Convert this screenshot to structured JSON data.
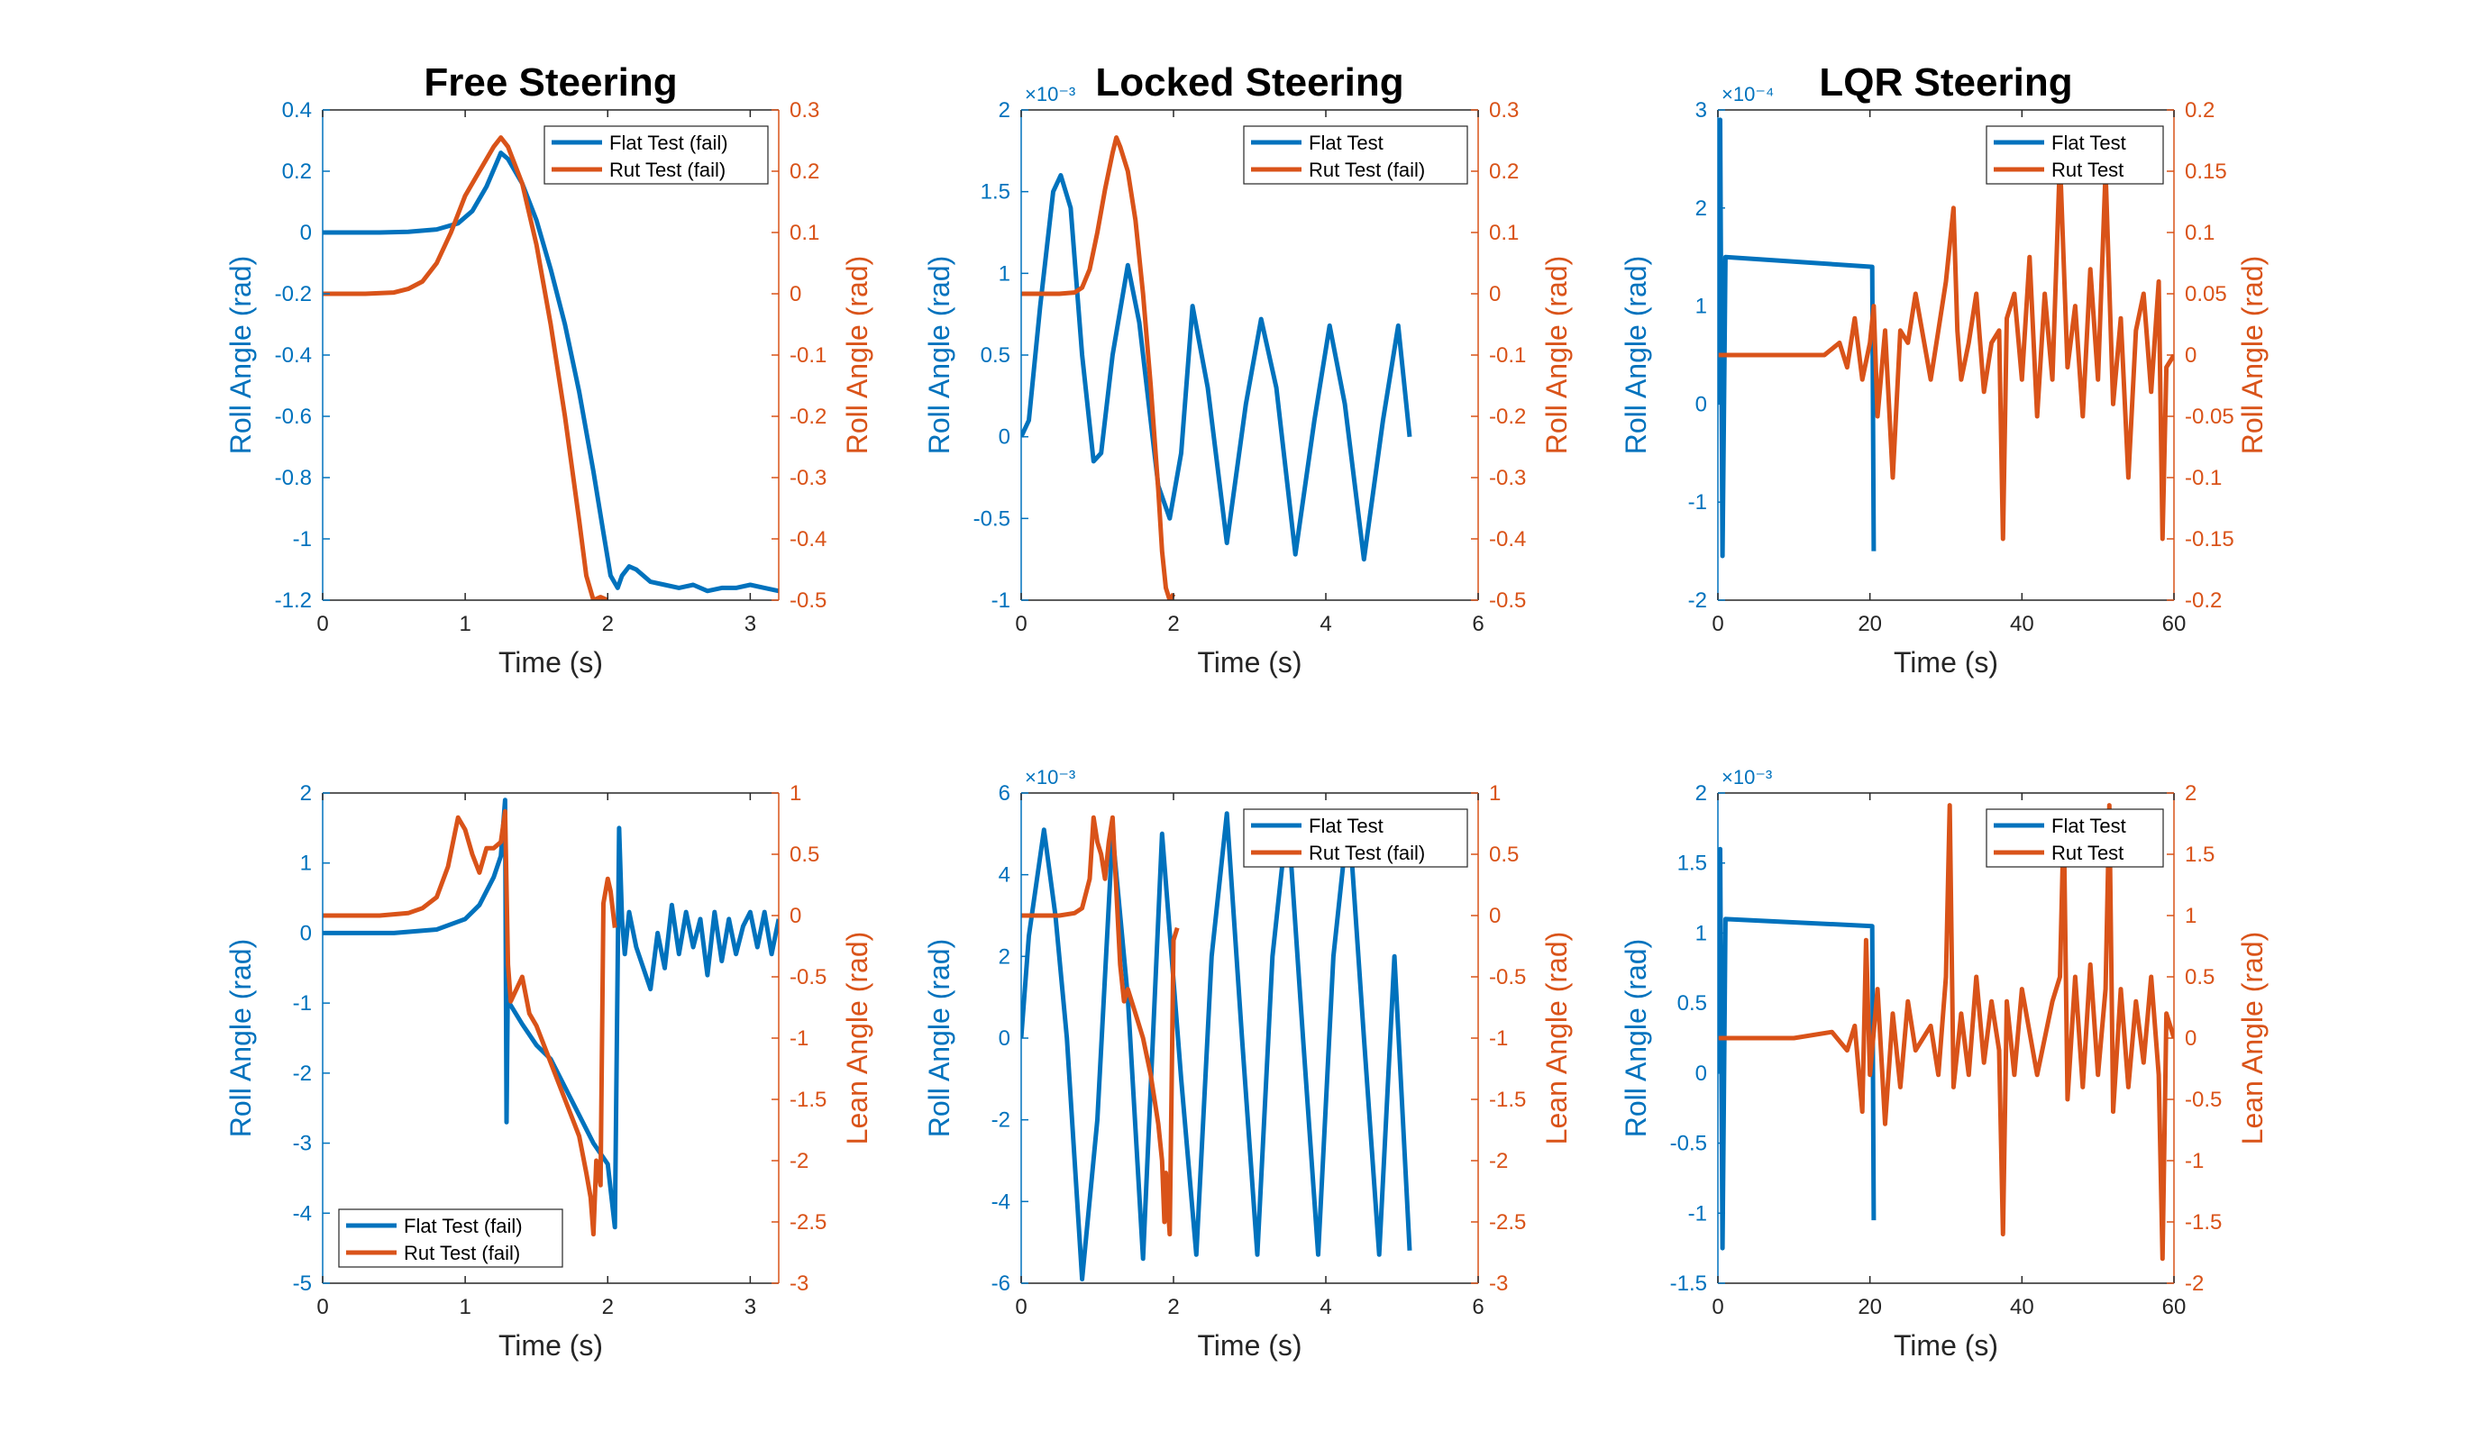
{
  "colors": {
    "flat": "#0072BD",
    "rut": "#D95319",
    "axis": "#262626"
  },
  "chart_data": [
    {
      "type": "line",
      "title": "Free Steering",
      "xlabel": "Time (s)",
      "ylabel_left": "Roll Angle (rad)",
      "ylabel_right": "Roll Angle (rad)",
      "xlim": [
        0,
        3.2
      ],
      "xticks": [
        0,
        1,
        2,
        3
      ],
      "ylim_left": [
        -1.2,
        0.4
      ],
      "yticks_left": [
        -1.2,
        -1,
        -0.8,
        -0.6,
        -0.4,
        -0.2,
        0,
        0.2,
        0.4
      ],
      "ylim_right": [
        -0.5,
        0.3
      ],
      "yticks_right": [
        -0.5,
        -0.4,
        -0.3,
        -0.2,
        -0.1,
        0,
        0.1,
        0.2,
        0.3
      ],
      "legend": {
        "position": "top-right",
        "entries": [
          "Flat Test (fail)",
          "Rut Test (fail)"
        ]
      },
      "series": [
        {
          "name": "Flat Test (fail)",
          "axis": "left",
          "color": "#0072BD",
          "x": [
            0,
            0.4,
            0.6,
            0.8,
            0.95,
            1.05,
            1.15,
            1.25,
            1.3,
            1.4,
            1.5,
            1.6,
            1.7,
            1.8,
            1.9,
            1.97,
            2.02,
            2.07,
            2.1,
            2.15,
            2.2,
            2.3,
            2.4,
            2.5,
            2.6,
            2.7,
            2.8,
            2.9,
            3.0,
            3.1,
            3.2
          ],
          "y": [
            0,
            0,
            0.002,
            0.01,
            0.03,
            0.07,
            0.15,
            0.26,
            0.24,
            0.16,
            0.04,
            -0.12,
            -0.3,
            -0.52,
            -0.78,
            -0.98,
            -1.12,
            -1.16,
            -1.12,
            -1.09,
            -1.1,
            -1.14,
            -1.15,
            -1.16,
            -1.15,
            -1.17,
            -1.16,
            -1.16,
            -1.15,
            -1.16,
            -1.17
          ]
        },
        {
          "name": "Rut Test (fail)",
          "axis": "right",
          "color": "#D95319",
          "x": [
            0,
            0.3,
            0.5,
            0.6,
            0.7,
            0.8,
            0.9,
            1.0,
            1.1,
            1.2,
            1.25,
            1.3,
            1.4,
            1.5,
            1.6,
            1.7,
            1.8,
            1.85,
            1.9,
            1.95,
            2.0
          ],
          "y": [
            0,
            0,
            0.002,
            0.008,
            0.02,
            0.05,
            0.1,
            0.16,
            0.2,
            0.24,
            0.255,
            0.24,
            0.18,
            0.08,
            -0.05,
            -0.2,
            -0.37,
            -0.46,
            -0.5,
            -0.495,
            -0.5
          ]
        }
      ]
    },
    {
      "type": "line",
      "title": "Locked Steering",
      "xlabel": "Time (s)",
      "ylabel_left": "Roll Angle (rad)",
      "ylabel_right": "Roll Angle (rad)",
      "y_multiplier_left": "×10⁻³",
      "xlim": [
        0,
        6
      ],
      "xticks": [
        0,
        2,
        4,
        6
      ],
      "ylim_left": [
        -1,
        2
      ],
      "yticks_left": [
        -1,
        -0.5,
        0,
        0.5,
        1,
        1.5,
        2
      ],
      "ylim_right": [
        -0.5,
        0.3
      ],
      "yticks_right": [
        -0.5,
        -0.4,
        -0.3,
        -0.2,
        -0.1,
        0,
        0.1,
        0.2,
        0.3
      ],
      "legend": {
        "position": "top-right",
        "entries": [
          "Flat Test",
          "Rut Test (fail)"
        ]
      },
      "series": [
        {
          "name": "Flat Test",
          "axis": "left",
          "color": "#0072BD",
          "x": [
            0,
            0.1,
            0.25,
            0.42,
            0.52,
            0.65,
            0.8,
            0.95,
            1.05,
            1.2,
            1.4,
            1.55,
            1.8,
            1.95,
            2.1,
            2.25,
            2.45,
            2.7,
            2.95,
            3.15,
            3.35,
            3.6,
            3.85,
            4.05,
            4.25,
            4.5,
            4.75,
            4.95,
            5.1
          ],
          "y": [
            0,
            0.1,
            0.8,
            1.5,
            1.6,
            1.4,
            0.5,
            -0.15,
            -0.1,
            0.5,
            1.05,
            0.7,
            -0.3,
            -0.5,
            -0.1,
            0.8,
            0.3,
            -0.65,
            0.2,
            0.72,
            0.3,
            -0.72,
            0.1,
            0.68,
            0.2,
            -0.75,
            0.1,
            0.68,
            0
          ]
        },
        {
          "name": "Rut Test (fail)",
          "axis": "right",
          "color": "#D95319",
          "x": [
            0,
            0.5,
            0.7,
            0.8,
            0.9,
            1.0,
            1.1,
            1.2,
            1.25,
            1.3,
            1.4,
            1.5,
            1.6,
            1.7,
            1.8,
            1.85,
            1.9,
            1.95,
            2.0
          ],
          "y": [
            0,
            0,
            0.002,
            0.01,
            0.04,
            0.1,
            0.17,
            0.23,
            0.255,
            0.24,
            0.2,
            0.12,
            0.0,
            -0.15,
            -0.32,
            -0.42,
            -0.48,
            -0.5,
            -0.49
          ]
        }
      ]
    },
    {
      "type": "line",
      "title": "LQR Steering",
      "xlabel": "Time (s)",
      "ylabel_left": "Roll Angle (rad)",
      "ylabel_right": "Roll Angle (rad)",
      "y_multiplier_left": "×10⁻⁴",
      "xlim": [
        0,
        60
      ],
      "xticks": [
        0,
        20,
        40,
        60
      ],
      "ylim_left": [
        -2,
        3
      ],
      "yticks_left": [
        -2,
        -1,
        0,
        1,
        2,
        3
      ],
      "ylim_right": [
        -0.2,
        0.2
      ],
      "yticks_right": [
        -0.2,
        -0.15,
        -0.1,
        -0.05,
        0,
        0.05,
        0.1,
        0.15,
        0.2
      ],
      "legend": {
        "position": "top-right",
        "entries": [
          "Flat Test",
          "Rut Test"
        ]
      },
      "series": [
        {
          "name": "Flat Test",
          "axis": "left",
          "color": "#0072BD",
          "x": [
            0,
            0.3,
            0.6,
            1.0,
            20.3,
            20.5
          ],
          "y": [
            0,
            2.9,
            -1.55,
            1.5,
            1.4,
            -1.5
          ]
        },
        {
          "name": "Rut Test",
          "axis": "right",
          "color": "#D95319",
          "x": [
            0,
            10,
            14,
            16,
            17,
            18,
            19,
            20,
            20.5,
            21,
            22,
            23,
            24,
            25,
            26,
            28,
            29,
            30,
            31,
            31.5,
            32,
            33,
            34,
            35,
            36,
            37,
            37.5,
            38,
            39,
            40,
            41,
            42,
            43,
            44,
            45,
            46,
            47,
            48,
            49,
            50,
            51,
            52,
            53,
            54,
            55,
            56,
            57,
            58,
            58.5,
            59,
            60
          ],
          "y": [
            0,
            0,
            0,
            0.01,
            -0.01,
            0.03,
            -0.02,
            0.01,
            0.04,
            -0.05,
            0.02,
            -0.1,
            0.02,
            0.01,
            0.05,
            -0.02,
            0.02,
            0.06,
            0.12,
            0.02,
            -0.02,
            0.01,
            0.05,
            -0.03,
            0.01,
            0.02,
            -0.15,
            0.03,
            0.05,
            -0.02,
            0.08,
            -0.05,
            0.05,
            -0.02,
            0.16,
            -0.01,
            0.04,
            -0.05,
            0.07,
            -0.02,
            0.15,
            -0.04,
            0.03,
            -0.1,
            0.02,
            0.05,
            -0.03,
            0.06,
            -0.15,
            -0.01,
            0
          ]
        }
      ]
    },
    {
      "type": "line",
      "title": "",
      "xlabel": "Time (s)",
      "ylabel_left": "Roll Angle (rad)",
      "ylabel_right": "Lean Angle (rad)",
      "xlim": [
        0,
        3.2
      ],
      "xticks": [
        0,
        1,
        2,
        3
      ],
      "ylim_left": [
        -5,
        2
      ],
      "yticks_left": [
        -5,
        -4,
        -3,
        -2,
        -1,
        0,
        1,
        2
      ],
      "ylim_right": [
        -3,
        1
      ],
      "yticks_right": [
        -3,
        -2.5,
        -2,
        -1.5,
        -1,
        -0.5,
        0,
        0.5,
        1
      ],
      "legend": {
        "position": "bottom-left",
        "entries": [
          "Flat Test (fail)",
          "Rut Test (fail)"
        ]
      },
      "series": [
        {
          "name": "Flat Test (fail)",
          "axis": "left",
          "color": "#0072BD",
          "x": [
            0,
            0.5,
            0.8,
            1.0,
            1.1,
            1.2,
            1.25,
            1.28,
            1.29,
            1.3,
            1.31,
            1.4,
            1.5,
            1.6,
            1.7,
            1.8,
            1.9,
            2.0,
            2.05,
            2.08,
            2.1,
            2.12,
            2.15,
            2.2,
            2.3,
            2.35,
            2.4,
            2.45,
            2.5,
            2.55,
            2.6,
            2.65,
            2.7,
            2.75,
            2.8,
            2.85,
            2.9,
            2.95,
            3.0,
            3.05,
            3.1,
            3.15,
            3.2
          ],
          "y": [
            0,
            0,
            0.05,
            0.2,
            0.4,
            0.8,
            1.1,
            1.9,
            -2.7,
            -0.5,
            -1.0,
            -1.3,
            -1.6,
            -1.8,
            -2.2,
            -2.6,
            -3.0,
            -3.3,
            -4.2,
            1.5,
            0.2,
            -0.3,
            0.3,
            -0.2,
            -0.8,
            0.0,
            -0.5,
            0.4,
            -0.3,
            0.3,
            -0.2,
            0.2,
            -0.6,
            0.3,
            -0.4,
            0.2,
            -0.3,
            0.1,
            0.3,
            -0.2,
            0.3,
            -0.3,
            0.2
          ]
        },
        {
          "name": "Rut Test (fail)",
          "axis": "right",
          "color": "#D95319",
          "x": [
            0,
            0.4,
            0.6,
            0.7,
            0.8,
            0.88,
            0.95,
            1.0,
            1.05,
            1.1,
            1.15,
            1.2,
            1.25,
            1.28,
            1.3,
            1.32,
            1.4,
            1.45,
            1.5,
            1.6,
            1.7,
            1.8,
            1.85,
            1.88,
            1.9,
            1.92,
            1.95,
            1.97,
            2.0,
            2.02,
            2.05
          ],
          "y": [
            0,
            0,
            0.02,
            0.06,
            0.15,
            0.4,
            0.8,
            0.7,
            0.5,
            0.35,
            0.55,
            0.55,
            0.6,
            0.85,
            -0.4,
            -0.7,
            -0.5,
            -0.8,
            -0.9,
            -1.2,
            -1.5,
            -1.8,
            -2.1,
            -2.3,
            -2.6,
            -2.0,
            -2.2,
            0.1,
            0.3,
            0.2,
            -0.1
          ]
        }
      ]
    },
    {
      "type": "line",
      "title": "",
      "xlabel": "Time (s)",
      "ylabel_left": "Roll Angle (rad)",
      "ylabel_right": "Lean Angle (rad)",
      "y_multiplier_left": "×10⁻³",
      "xlim": [
        0,
        6
      ],
      "xticks": [
        0,
        2,
        4,
        6
      ],
      "ylim_left": [
        -6,
        6
      ],
      "yticks_left": [
        -6,
        -4,
        -2,
        0,
        2,
        4,
        6
      ],
      "ylim_right": [
        -3,
        1
      ],
      "yticks_right": [
        -3,
        -2.5,
        -2,
        -1.5,
        -1,
        -0.5,
        0,
        0.5,
        1
      ],
      "legend": {
        "position": "top-right",
        "entries": [
          "Flat Test",
          "Rut Test (fail)"
        ]
      },
      "series": [
        {
          "name": "Flat Test",
          "axis": "left",
          "color": "#0072BD",
          "x": [
            0,
            0.1,
            0.3,
            0.45,
            0.6,
            0.8,
            1.0,
            1.2,
            1.4,
            1.6,
            1.85,
            2.1,
            2.3,
            2.5,
            2.7,
            2.9,
            3.1,
            3.3,
            3.5,
            3.7,
            3.9,
            4.1,
            4.3,
            4.5,
            4.7,
            4.9,
            5.1
          ],
          "y": [
            0,
            2.5,
            5.1,
            3.0,
            0,
            -5.9,
            -2.0,
            5.0,
            1.0,
            -5.4,
            5.0,
            -1.0,
            -5.3,
            2.0,
            5.5,
            0,
            -5.3,
            2.0,
            5.5,
            0,
            -5.3,
            2.0,
            5.5,
            0,
            -5.3,
            2.0,
            -5.2
          ]
        },
        {
          "name": "Rut Test (fail)",
          "axis": "right",
          "color": "#D95319",
          "x": [
            0,
            0.5,
            0.7,
            0.8,
            0.9,
            0.95,
            1.0,
            1.05,
            1.1,
            1.15,
            1.2,
            1.25,
            1.3,
            1.35,
            1.4,
            1.5,
            1.6,
            1.7,
            1.8,
            1.85,
            1.88,
            1.9,
            1.95,
            2.0,
            2.05
          ],
          "y": [
            0,
            0,
            0.02,
            0.06,
            0.3,
            0.8,
            0.6,
            0.5,
            0.3,
            0.6,
            0.8,
            0.2,
            -0.4,
            -0.7,
            -0.6,
            -0.8,
            -1.0,
            -1.3,
            -1.7,
            -2.0,
            -2.5,
            -2.1,
            -2.6,
            -0.2,
            -0.1
          ]
        }
      ]
    },
    {
      "type": "line",
      "title": "",
      "xlabel": "Time (s)",
      "ylabel_left": "Roll Angle (rad)",
      "ylabel_right": "Lean Angle (rad)",
      "y_multiplier_left": "×10⁻³",
      "xlim": [
        0,
        60
      ],
      "xticks": [
        0,
        20,
        40,
        60
      ],
      "ylim_left": [
        -1.5,
        2
      ],
      "yticks_left": [
        -1.5,
        -1,
        -0.5,
        0,
        0.5,
        1,
        1.5,
        2
      ],
      "ylim_right": [
        -2,
        2
      ],
      "yticks_right": [
        -2,
        -1.5,
        -1,
        -0.5,
        0,
        0.5,
        1,
        1.5,
        2
      ],
      "legend": {
        "position": "top-right",
        "entries": [
          "Flat Test",
          "Rut Test"
        ]
      },
      "series": [
        {
          "name": "Flat Test",
          "axis": "left",
          "color": "#0072BD",
          "x": [
            0,
            0.3,
            0.6,
            1.0,
            20.3,
            20.5
          ],
          "y": [
            0,
            1.6,
            -1.25,
            1.1,
            1.05,
            -1.05
          ]
        },
        {
          "name": "Rut Test",
          "axis": "right",
          "color": "#D95319",
          "x": [
            0,
            10,
            15,
            17,
            18,
            19,
            19.5,
            20,
            21,
            22,
            23,
            24,
            25,
            26,
            28,
            29,
            30,
            30.5,
            31,
            32,
            33,
            34,
            35,
            36,
            37,
            37.5,
            38,
            39,
            40,
            42,
            44,
            45,
            45.5,
            46,
            47,
            48,
            49,
            50,
            51,
            51.5,
            52,
            53,
            54,
            55,
            56,
            57,
            58,
            58.5,
            59,
            60
          ],
          "y": [
            0,
            0,
            0.05,
            -0.1,
            0.1,
            -0.6,
            0.8,
            -0.3,
            0.4,
            -0.7,
            0.2,
            -0.4,
            0.3,
            -0.1,
            0.1,
            -0.3,
            0.5,
            1.9,
            -0.4,
            0.2,
            -0.3,
            0.5,
            -0.2,
            0.3,
            -0.1,
            -1.6,
            0.3,
            -0.3,
            0.4,
            -0.3,
            0.3,
            0.5,
            1.8,
            -0.5,
            0.5,
            -0.4,
            0.6,
            -0.3,
            0.4,
            1.9,
            -0.6,
            0.4,
            -0.4,
            0.3,
            -0.2,
            0.5,
            -0.3,
            -1.8,
            0.2,
            0
          ]
        }
      ]
    }
  ]
}
